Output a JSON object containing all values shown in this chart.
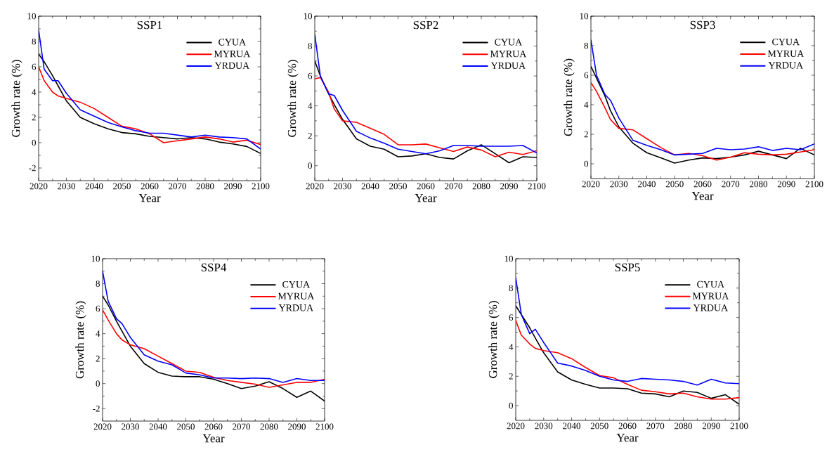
{
  "chart_data": [
    {
      "type": "line",
      "title": "SSP1",
      "xlabel": "Year",
      "ylabel": "Growth rate (%)",
      "legend": "top right",
      "xlim": [
        2020,
        2100
      ],
      "ylim": [
        -3,
        10
      ],
      "xticks": [
        2020,
        2030,
        2040,
        2050,
        2060,
        2070,
        2080,
        2090,
        2100
      ],
      "yticks": [
        -2,
        0,
        2,
        4,
        6,
        8,
        10
      ],
      "x": [
        2020,
        2022,
        2025,
        2027,
        2030,
        2035,
        2040,
        2045,
        2050,
        2055,
        2060,
        2065,
        2070,
        2075,
        2080,
        2085,
        2090,
        2095,
        2100
      ],
      "series": [
        {
          "name": "CYUA",
          "color": "#000000",
          "values": [
            7.0,
            6.4,
            5.3,
            4.5,
            3.3,
            2.0,
            1.5,
            1.1,
            0.8,
            0.7,
            0.5,
            0.4,
            0.3,
            0.4,
            0.3,
            0.05,
            -0.1,
            -0.3,
            -0.85
          ]
        },
        {
          "name": "MYRUA",
          "color": "#ff0000",
          "values": [
            6.0,
            4.9,
            4.0,
            3.7,
            3.5,
            3.2,
            2.7,
            2.0,
            1.3,
            1.1,
            0.7,
            0.0,
            0.15,
            0.3,
            0.45,
            0.3,
            0.05,
            0.2,
            -0.15
          ]
        },
        {
          "name": "YRDUA",
          "color": "#0000ff",
          "values": [
            8.9,
            5.8,
            4.9,
            4.9,
            3.9,
            2.6,
            2.1,
            1.6,
            1.25,
            0.95,
            0.75,
            0.75,
            0.6,
            0.45,
            0.6,
            0.45,
            0.4,
            0.3,
            -0.5
          ]
        }
      ]
    },
    {
      "type": "line",
      "title": "SSP2",
      "xlabel": "Year",
      "ylabel": "Growth rate (%)",
      "legend": "top right",
      "xlim": [
        2020,
        2100
      ],
      "ylim": [
        -1,
        10
      ],
      "xticks": [
        2020,
        2030,
        2040,
        2050,
        2060,
        2070,
        2080,
        2090,
        2100
      ],
      "yticks": [
        0,
        2,
        4,
        6,
        8,
        10
      ],
      "x": [
        2020,
        2022,
        2025,
        2027,
        2030,
        2035,
        2040,
        2045,
        2050,
        2055,
        2060,
        2065,
        2070,
        2075,
        2080,
        2085,
        2090,
        2095,
        2100
      ],
      "series": [
        {
          "name": "CYUA",
          "color": "#000000",
          "values": [
            7.0,
            6.0,
            4.8,
            4.1,
            3.1,
            1.8,
            1.3,
            1.1,
            0.6,
            0.65,
            0.8,
            0.55,
            0.45,
            1.0,
            1.4,
            0.8,
            0.2,
            0.6,
            0.55
          ]
        },
        {
          "name": "MYRUA",
          "color": "#ff0000",
          "values": [
            5.8,
            5.9,
            4.9,
            3.8,
            3.0,
            2.9,
            2.5,
            2.1,
            1.4,
            1.4,
            1.45,
            1.2,
            0.95,
            1.25,
            1.05,
            0.6,
            0.9,
            0.75,
            1.0
          ]
        },
        {
          "name": "YRDUA",
          "color": "#0000ff",
          "values": [
            8.8,
            6.0,
            4.8,
            4.7,
            3.7,
            2.3,
            1.85,
            1.5,
            1.1,
            0.95,
            0.8,
            1.0,
            1.35,
            1.35,
            1.3,
            1.3,
            1.3,
            1.35,
            0.85
          ]
        }
      ]
    },
    {
      "type": "line",
      "title": "SSP3",
      "xlabel": "Year",
      "ylabel": "Growth rate (%)",
      "legend": "top right",
      "xlim": [
        2020,
        2100
      ],
      "ylim": [
        -1,
        10
      ],
      "xticks": [
        2020,
        2030,
        2040,
        2050,
        2060,
        2070,
        2080,
        2090,
        2100
      ],
      "yticks": [
        0,
        2,
        4,
        6,
        8,
        10
      ],
      "x": [
        2020,
        2022,
        2025,
        2027,
        2030,
        2035,
        2040,
        2045,
        2050,
        2055,
        2060,
        2065,
        2070,
        2075,
        2080,
        2085,
        2090,
        2095,
        2100
      ],
      "series": [
        {
          "name": "CYUA",
          "color": "#000000",
          "values": [
            6.6,
            5.8,
            4.6,
            3.6,
            2.5,
            1.4,
            0.75,
            0.4,
            0.05,
            0.25,
            0.4,
            0.35,
            0.45,
            0.6,
            0.85,
            0.6,
            0.35,
            1.05,
            0.6
          ]
        },
        {
          "name": "MYRUA",
          "color": "#ff0000",
          "values": [
            5.5,
            4.9,
            3.8,
            3.0,
            2.4,
            2.3,
            1.7,
            1.1,
            0.6,
            0.7,
            0.55,
            0.25,
            0.45,
            0.75,
            0.65,
            0.6,
            0.65,
            0.8,
            0.95
          ]
        },
        {
          "name": "YRDUA",
          "color": "#0000ff",
          "values": [
            8.4,
            6.0,
            4.7,
            4.3,
            3.1,
            1.6,
            1.25,
            0.95,
            0.6,
            0.65,
            0.7,
            1.05,
            0.95,
            1.0,
            1.15,
            0.9,
            1.05,
            0.95,
            1.35
          ]
        }
      ]
    },
    {
      "type": "line",
      "title": "SSP4",
      "xlabel": "Year",
      "ylabel": "Growth rate (%)",
      "legend": "top right",
      "xlim": [
        2020,
        2100
      ],
      "ylim": [
        -3,
        10
      ],
      "xticks": [
        2020,
        2030,
        2040,
        2050,
        2060,
        2070,
        2080,
        2090,
        2100
      ],
      "yticks": [
        -2,
        0,
        2,
        4,
        6,
        8,
        10
      ],
      "x": [
        2020,
        2022,
        2025,
        2027,
        2030,
        2035,
        2040,
        2045,
        2050,
        2055,
        2060,
        2065,
        2070,
        2075,
        2080,
        2085,
        2090,
        2095,
        2100
      ],
      "series": [
        {
          "name": "CYUA",
          "color": "#000000",
          "values": [
            7.0,
            6.3,
            5.0,
            4.2,
            3.0,
            1.6,
            0.9,
            0.6,
            0.55,
            0.55,
            0.35,
            0.0,
            -0.4,
            -0.2,
            0.15,
            -0.4,
            -1.1,
            -0.6,
            -1.4
          ]
        },
        {
          "name": "MYRUA",
          "color": "#ff0000",
          "values": [
            5.9,
            5.1,
            4.0,
            3.5,
            3.1,
            2.8,
            2.2,
            1.6,
            1.0,
            0.9,
            0.5,
            0.25,
            0.1,
            -0.05,
            -0.3,
            -0.1,
            0.1,
            0.1,
            0.35
          ]
        },
        {
          "name": "YRDUA",
          "color": "#0000ff",
          "values": [
            9.0,
            6.6,
            5.2,
            4.8,
            3.7,
            2.3,
            1.8,
            1.5,
            0.85,
            0.7,
            0.45,
            0.45,
            0.4,
            0.45,
            0.4,
            0.1,
            0.4,
            0.25,
            0.25
          ]
        }
      ]
    },
    {
      "type": "line",
      "title": "SSP5",
      "xlabel": "Year",
      "ylabel": "Growth rate (%)",
      "legend": "top right",
      "xlim": [
        2020,
        2100
      ],
      "ylim": [
        -1,
        10
      ],
      "xticks": [
        2020,
        2030,
        2040,
        2050,
        2060,
        2070,
        2080,
        2090,
        2100
      ],
      "yticks": [
        0,
        2,
        4,
        6,
        8,
        10
      ],
      "x": [
        2020,
        2022,
        2025,
        2027,
        2030,
        2035,
        2040,
        2045,
        2050,
        2055,
        2060,
        2065,
        2070,
        2075,
        2080,
        2085,
        2090,
        2095,
        2100
      ],
      "series": [
        {
          "name": "CYUA",
          "color": "#000000",
          "values": [
            6.8,
            6.2,
            5.3,
            4.6,
            3.6,
            2.3,
            1.75,
            1.45,
            1.2,
            1.2,
            1.15,
            0.85,
            0.8,
            0.6,
            1.0,
            0.9,
            0.5,
            0.75,
            0.1
          ]
        },
        {
          "name": "MYRUA",
          "color": "#ff0000",
          "values": [
            5.8,
            4.8,
            4.2,
            3.9,
            3.75,
            3.6,
            3.2,
            2.6,
            2.05,
            1.9,
            1.45,
            1.05,
            0.95,
            0.8,
            0.85,
            0.6,
            0.45,
            0.45,
            0.55
          ]
        },
        {
          "name": "YRDUA",
          "color": "#0000ff",
          "values": [
            8.7,
            6.2,
            4.9,
            5.2,
            4.3,
            2.9,
            2.7,
            2.4,
            2.0,
            1.75,
            1.65,
            1.85,
            1.8,
            1.75,
            1.65,
            1.4,
            1.8,
            1.55,
            1.5
          ]
        }
      ]
    }
  ]
}
